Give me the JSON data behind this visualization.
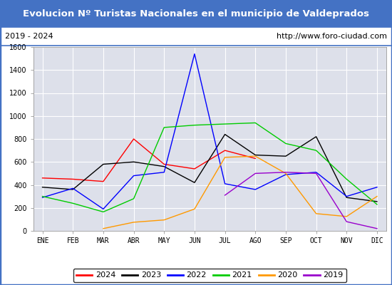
{
  "title": "Evolucion Nº Turistas Nacionales en el municipio de Valdeprados",
  "title_bg": "#4472c4",
  "subtitle_left": "2019 - 2024",
  "subtitle_right": "http://www.foro-ciudad.com",
  "months": [
    "ENE",
    "FEB",
    "MAR",
    "ABR",
    "MAY",
    "JUN",
    "JUL",
    "AGO",
    "SEP",
    "OCT",
    "NOV",
    "DIC"
  ],
  "ylim": [
    0,
    1600
  ],
  "yticks": [
    0,
    200,
    400,
    600,
    800,
    1000,
    1200,
    1400,
    1600
  ],
  "series": {
    "2024": {
      "color": "#ff0000",
      "values": [
        460,
        450,
        430,
        800,
        580,
        540,
        700,
        630,
        null,
        null,
        null,
        null
      ]
    },
    "2023": {
      "color": "#000000",
      "values": [
        380,
        360,
        580,
        600,
        560,
        420,
        840,
        660,
        650,
        820,
        290,
        255
      ]
    },
    "2022": {
      "color": "#0000ff",
      "values": [
        290,
        370,
        190,
        480,
        510,
        1540,
        410,
        360,
        490,
        510,
        300,
        380
      ]
    },
    "2021": {
      "color": "#00cc00",
      "values": [
        300,
        240,
        165,
        280,
        900,
        920,
        930,
        940,
        760,
        700,
        450,
        230
      ]
    },
    "2020": {
      "color": "#ff9900",
      "values": [
        null,
        null,
        20,
        75,
        95,
        190,
        640,
        650,
        500,
        150,
        125,
        300
      ]
    },
    "2019": {
      "color": "#9900cc",
      "values": [
        null,
        null,
        null,
        null,
        null,
        null,
        310,
        500,
        510,
        500,
        80,
        20
      ]
    }
  },
  "legend_order": [
    "2024",
    "2023",
    "2022",
    "2021",
    "2020",
    "2019"
  ],
  "bg_plot": "#dde0ea",
  "grid_color": "#ffffff",
  "border_color": "#4472c4",
  "title_fontsize": 9.5,
  "subtitle_fontsize": 8,
  "tick_fontsize": 7,
  "legend_fontsize": 8
}
